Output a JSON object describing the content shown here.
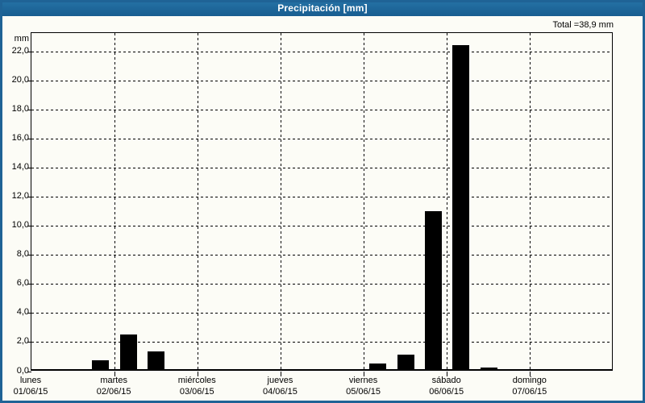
{
  "window": {
    "title": "Precipitación [mm]"
  },
  "total_label": "Total =38,9 mm",
  "colors": {
    "frame": "#1f6396",
    "titlebar_top": "#2673a6",
    "titlebar_bottom": "#185d90",
    "background": "#fcfcf6",
    "bar": "#000000",
    "grid": "#000000",
    "text": "#000000",
    "title_text": "#ffffff"
  },
  "chart_data": {
    "type": "bar",
    "title": "Precipitación [mm]",
    "xlabel": "",
    "ylabel": "mm",
    "ylim": [
      0,
      23.3
    ],
    "grid": true,
    "y_ticks": [
      {
        "value": 0,
        "label": "0,0"
      },
      {
        "value": 2,
        "label": "2,0"
      },
      {
        "value": 4,
        "label": "4,0"
      },
      {
        "value": 6,
        "label": "6,0"
      },
      {
        "value": 8,
        "label": "8,0"
      },
      {
        "value": 10,
        "label": "10,0"
      },
      {
        "value": 12,
        "label": "12,0"
      },
      {
        "value": 14,
        "label": "14,0"
      },
      {
        "value": 16,
        "label": "16,0"
      },
      {
        "value": 18,
        "label": "18,0"
      },
      {
        "value": 20,
        "label": "20,0"
      },
      {
        "value": 22,
        "label": "22,0"
      }
    ],
    "days": [
      {
        "name": "lunes",
        "date": "01/06/15"
      },
      {
        "name": "martes",
        "date": "02/06/15"
      },
      {
        "name": "miércoles",
        "date": "03/06/15"
      },
      {
        "name": "jueves",
        "date": "04/06/15"
      },
      {
        "name": "viernes",
        "date": "05/06/15"
      },
      {
        "name": "sábado",
        "date": "06/06/15"
      },
      {
        "name": "domingo",
        "date": "07/06/15"
      }
    ],
    "periods_per_day": 3,
    "bars": [
      {
        "day": "lunes",
        "date": "01/06/15",
        "day_index": 0,
        "period_index": 2,
        "value_mm": 0.6
      },
      {
        "day": "martes",
        "date": "02/06/15",
        "day_index": 1,
        "period_index": 0,
        "value_mm": 2.4
      },
      {
        "day": "martes",
        "date": "02/06/15",
        "day_index": 1,
        "period_index": 1,
        "value_mm": 1.2
      },
      {
        "day": "viernes",
        "date": "05/06/15",
        "day_index": 4,
        "period_index": 0,
        "value_mm": 0.4
      },
      {
        "day": "viernes",
        "date": "05/06/15",
        "day_index": 4,
        "period_index": 1,
        "value_mm": 1.0
      },
      {
        "day": "viernes",
        "date": "05/06/15",
        "day_index": 4,
        "period_index": 2,
        "value_mm": 10.9
      },
      {
        "day": "sábado",
        "date": "06/06/15",
        "day_index": 5,
        "period_index": 0,
        "value_mm": 22.3
      },
      {
        "day": "sábado",
        "date": "06/06/15",
        "day_index": 5,
        "period_index": 1,
        "value_mm": 0.1
      }
    ],
    "total_mm": 38.9
  }
}
